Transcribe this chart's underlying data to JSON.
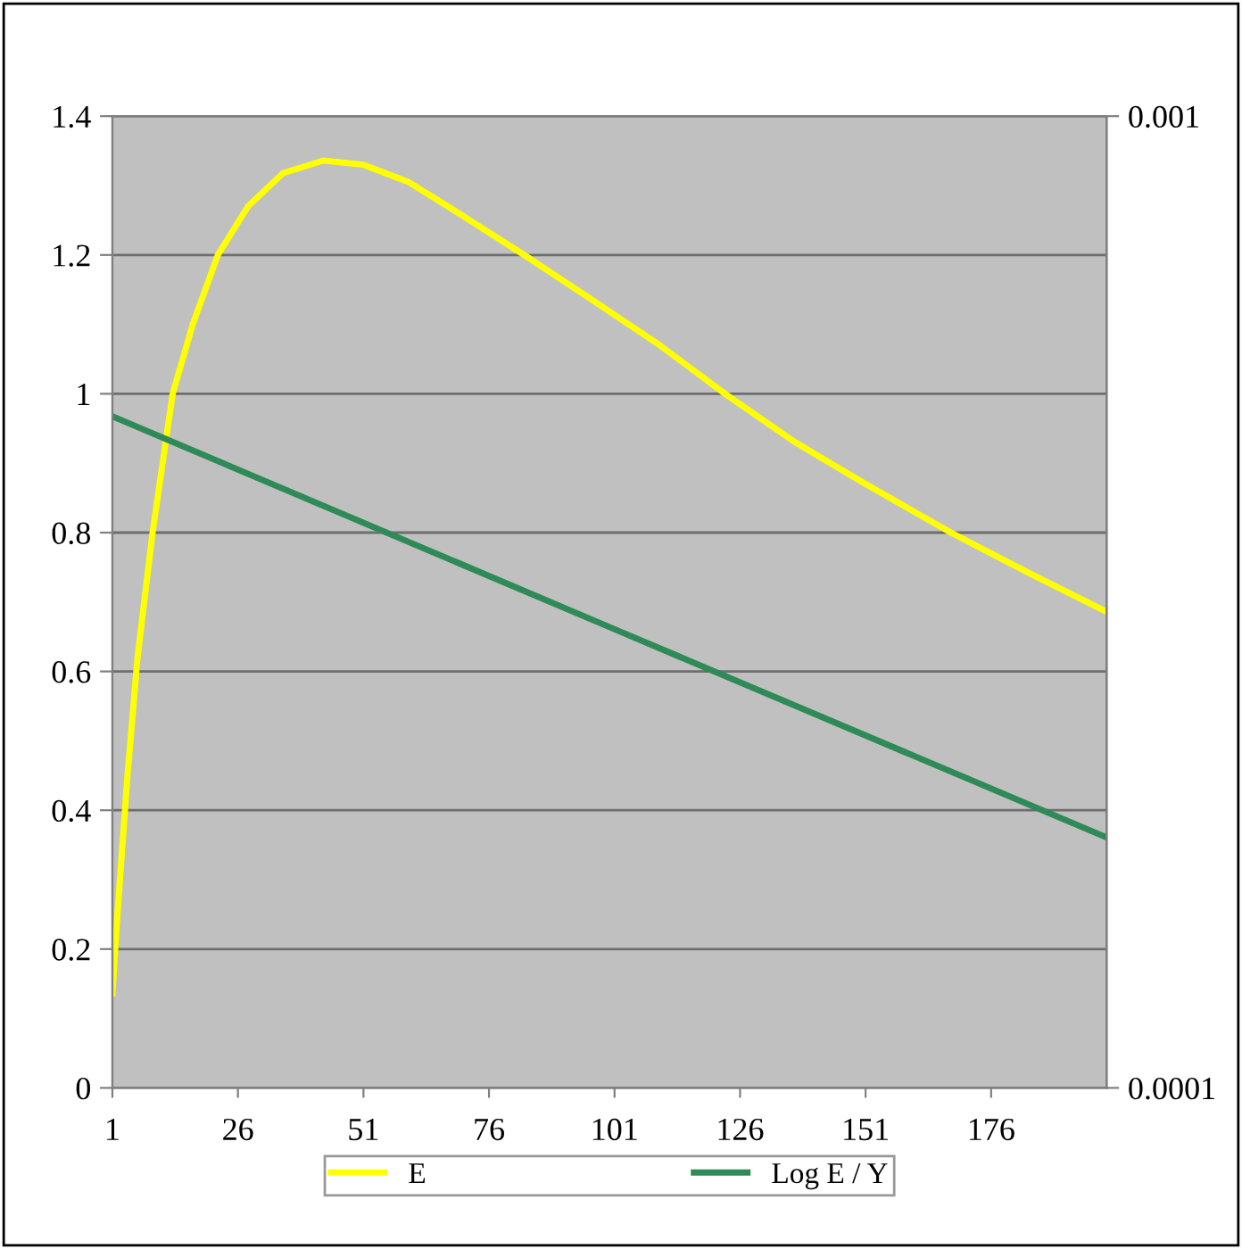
{
  "chart_data": {
    "type": "line",
    "xlim": [
      1,
      199
    ],
    "xticks": [
      1,
      26,
      51,
      76,
      101,
      126,
      151,
      176
    ],
    "ylim": [
      0,
      1.4
    ],
    "yticks": [
      0,
      0.2,
      0.4,
      0.6,
      0.8,
      1,
      1.2,
      1.4
    ],
    "y2lim": [
      0.0001,
      0.001
    ],
    "y2ticks": [
      0.0001,
      0.001
    ],
    "log": "y2",
    "grid": "y",
    "legend": "bottom",
    "marker": "none",
    "line_style": "solid",
    "series": [
      {
        "name": "E",
        "color": "#ffff00",
        "x": [
          1,
          2,
          4,
          6,
          9,
          13,
          17,
          22,
          28,
          35,
          43,
          51,
          60,
          70,
          83,
          96,
          110,
          123,
          137,
          151,
          168,
          184,
          199
        ],
        "values": [
          0.136,
          0.25,
          0.45,
          0.62,
          0.8,
          1.0,
          1.1,
          1.2,
          1.27,
          1.318,
          1.336,
          1.33,
          1.305,
          1.26,
          1.2,
          1.138,
          1.07,
          1.0,
          0.93,
          0.87,
          0.8,
          0.74,
          0.686
        ]
      },
      {
        "name": "Log E / Y",
        "color": "#2e8b57",
        "axis": "y2",
        "x": [
          1,
          100,
          199
        ],
        "values": [
          0.000491,
          0.000298,
          0.000181
        ]
      }
    ]
  }
}
